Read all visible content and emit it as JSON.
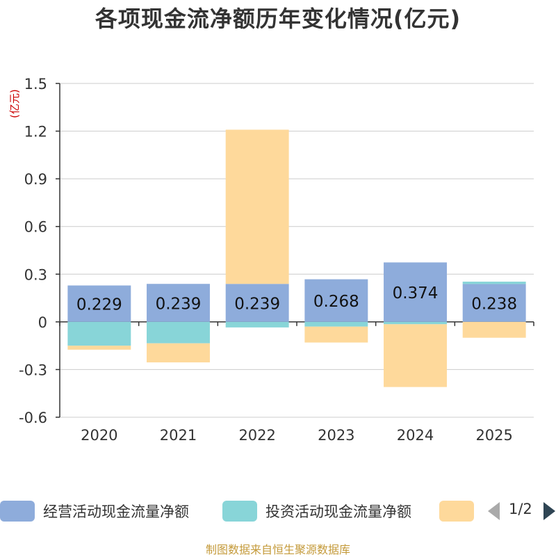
{
  "title": "各项现金流净额历年变化情况(亿元)",
  "unit_label": "(亿元)",
  "source": "制图数据来自恒生聚源数据库",
  "legend": {
    "items": [
      {
        "label": "经营活动现金流量净额",
        "color": "#8eacdb"
      },
      {
        "label": "投资活动现金流量净额",
        "color": "#88d5d8"
      },
      {
        "label": "",
        "color": "#fed99b"
      }
    ],
    "page": "1/2"
  },
  "chart_data": {
    "type": "bar",
    "stacked": true,
    "categories": [
      "2020",
      "2021",
      "2022",
      "2023",
      "2024",
      "2025"
    ],
    "ylim": [
      -0.6,
      1.5
    ],
    "yticks": [
      -0.6,
      -0.3,
      0,
      0.3,
      0.6,
      0.9,
      1.2,
      1.5
    ],
    "ytick_labels": [
      "-0.6",
      "-0.3",
      "0",
      "0.3",
      "0.6",
      "0.9",
      "1.2",
      "1.5"
    ],
    "grid": true,
    "legend_position": "bottom",
    "series": [
      {
        "name": "经营活动现金流量净额",
        "color": "#8eacdb",
        "values": [
          0.229,
          0.239,
          0.239,
          0.268,
          0.374,
          0.238
        ],
        "labels": [
          "0.229",
          "0.239",
          "0.239",
          "0.268",
          "0.374",
          "0.238"
        ]
      },
      {
        "name": "投资活动现金流量净额",
        "color": "#88d5d8",
        "values": [
          -0.15,
          -0.135,
          -0.035,
          -0.03,
          -0.015,
          0.015
        ]
      },
      {
        "color": "#fed99b",
        "values": [
          -0.025,
          -0.12,
          0.97,
          -0.1,
          -0.395,
          -0.1
        ]
      }
    ]
  }
}
